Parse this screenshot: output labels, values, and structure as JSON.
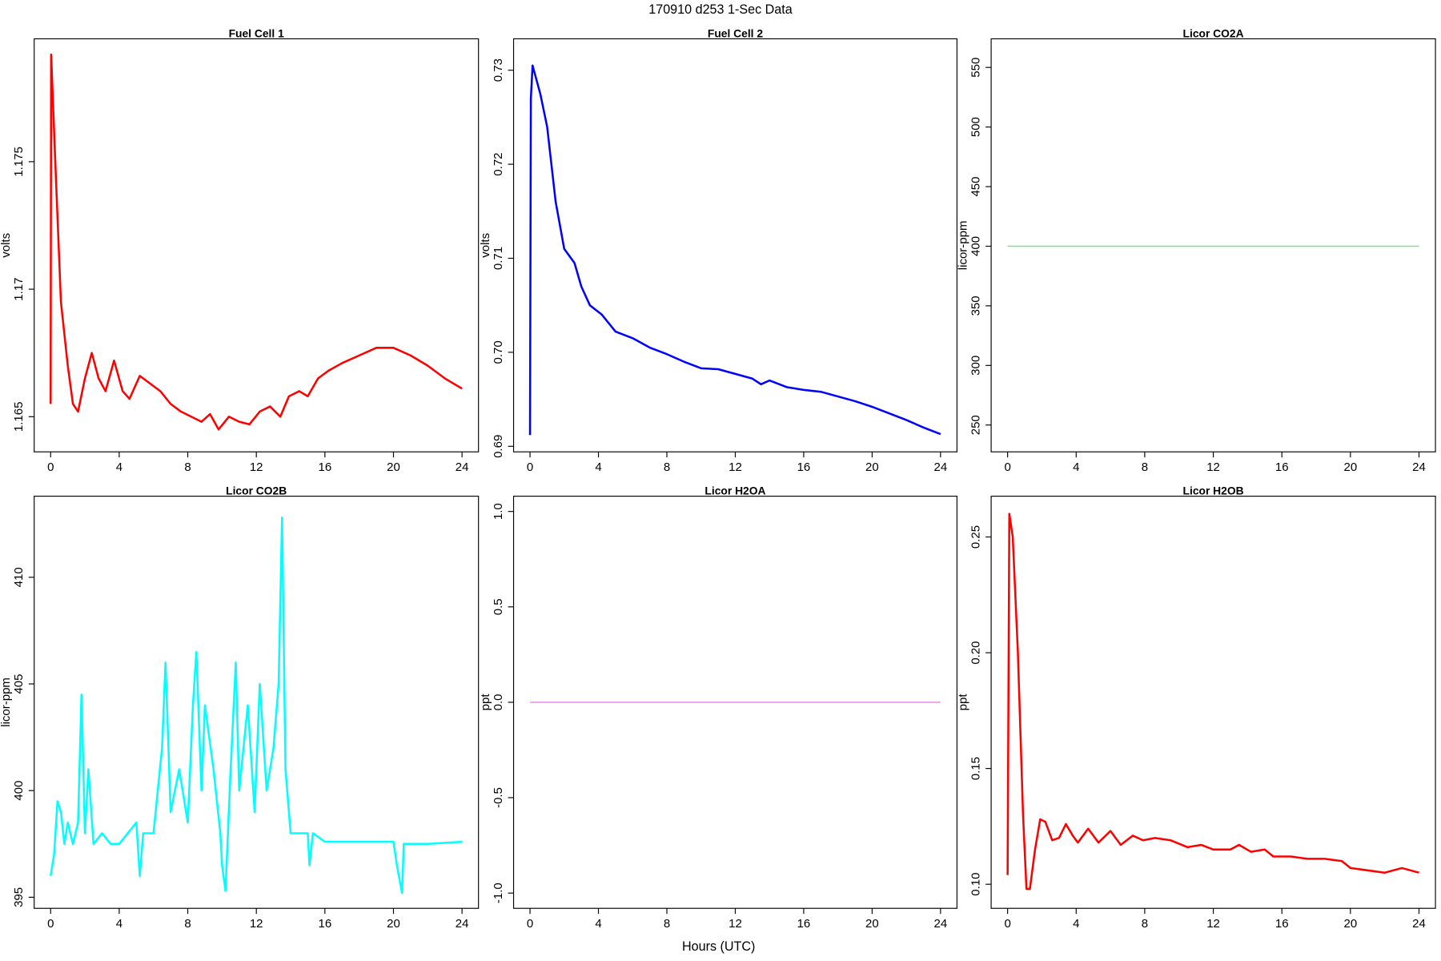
{
  "title": "170910   d253   1-Sec Data",
  "xlabel": "Hours (UTC)",
  "chart_data": [
    {
      "type": "line",
      "title": "Fuel Cell 1",
      "ylabel": "volts",
      "color": "#ff0000",
      "x": [
        0,
        0.03,
        0.3,
        0.6,
        1.0,
        1.3,
        1.6,
        2.0,
        2.4,
        2.8,
        3.2,
        3.7,
        4.2,
        4.6,
        5.2,
        5.8,
        6.4,
        7.0,
        7.6,
        8.2,
        8.8,
        9.3,
        9.8,
        10.4,
        11.0,
        11.6,
        12.2,
        12.8,
        13.4,
        13.9,
        14.5,
        15.0,
        15.6,
        16.2,
        17,
        18,
        19,
        20,
        21,
        22,
        23,
        24
      ],
      "values": [
        1.1655,
        1.1792,
        1.1745,
        1.1695,
        1.167,
        1.1655,
        1.1652,
        1.1665,
        1.1675,
        1.1665,
        1.166,
        1.1672,
        1.166,
        1.1657,
        1.1666,
        1.1663,
        1.166,
        1.1655,
        1.1652,
        1.165,
        1.1648,
        1.1651,
        1.1645,
        1.165,
        1.1648,
        1.1647,
        1.1652,
        1.1654,
        1.165,
        1.1658,
        1.166,
        1.1658,
        1.1665,
        1.1668,
        1.1671,
        1.1674,
        1.1677,
        1.1677,
        1.1674,
        1.167,
        1.1665,
        1.1661
      ],
      "xlim": [
        -0.96,
        24.96
      ],
      "ylim": [
        1.16362,
        1.17982
      ],
      "xticks": [
        0,
        4,
        8,
        12,
        16,
        20,
        24
      ],
      "yticks": [
        1.165,
        1.17,
        1.175
      ]
    },
    {
      "type": "line",
      "title": "Fuel Cell 2",
      "ylabel": "volts",
      "color": "#0000ff",
      "x": [
        0,
        0.05,
        0.15,
        0.3,
        0.6,
        1.0,
        1.5,
        2,
        2.6,
        3,
        3.5,
        4.2,
        5,
        6,
        7,
        8,
        9,
        10,
        11,
        12,
        13,
        13.5,
        14,
        15,
        16,
        17,
        18,
        19,
        20,
        21,
        22,
        23,
        24
      ],
      "values": [
        0.6912,
        0.727,
        0.7305,
        0.7295,
        0.7275,
        0.724,
        0.716,
        0.711,
        0.7095,
        0.707,
        0.705,
        0.704,
        0.7022,
        0.7015,
        0.7005,
        0.6998,
        0.699,
        0.6983,
        0.6982,
        0.6977,
        0.6972,
        0.6966,
        0.697,
        0.6963,
        0.696,
        0.6958,
        0.6953,
        0.6948,
        0.6942,
        0.6935,
        0.6928,
        0.692,
        0.6913
      ],
      "xlim": [
        -0.96,
        24.96
      ],
      "ylim": [
        0.68941,
        0.73334
      ],
      "xticks": [
        0,
        4,
        8,
        12,
        16,
        20,
        24
      ],
      "yticks": [
        {
          "value": 0.69,
          "label": "0.69"
        },
        {
          "value": 0.7,
          "label": "0.70"
        },
        0.71,
        0.72,
        0.73
      ]
    },
    {
      "type": "line",
      "title": "Licor CO2A",
      "ylabel": "licor-ppm",
      "color": "#66ee66",
      "x": [
        0,
        24
      ],
      "values": [
        400,
        400
      ],
      "xlim": [
        -0.96,
        24.96
      ],
      "ylim": [
        227.5,
        574
      ],
      "xticks": [
        0,
        4,
        8,
        12,
        16,
        20,
        24
      ],
      "yticks": [
        250,
        300,
        350,
        400,
        450,
        500,
        550
      ]
    },
    {
      "type": "line",
      "title": "Licor CO2B",
      "ylabel": "licor-ppm",
      "color": "#00ffff",
      "x": [
        0,
        0.2,
        0.4,
        0.6,
        0.8,
        1.0,
        1.3,
        1.6,
        1.8,
        2.0,
        2.2,
        2.5,
        3,
        3.5,
        4,
        4.5,
        5,
        5.2,
        5.4,
        6,
        6.5,
        6.7,
        7,
        7.5,
        8,
        8.3,
        8.5,
        8.8,
        9,
        9.5,
        9.9,
        10.0,
        10.2,
        10.5,
        10.8,
        11,
        11.5,
        11.9,
        12.2,
        12.6,
        13,
        13.3,
        13.5,
        13.7,
        14,
        14.5,
        15,
        15.1,
        15.3,
        16,
        18,
        20,
        20.2,
        20.5,
        20.6,
        22,
        24
      ],
      "values": [
        396,
        397,
        399.5,
        399,
        397.5,
        398.5,
        397.5,
        398.5,
        404.5,
        398,
        401,
        397.5,
        398,
        397.5,
        397.5,
        398,
        398.5,
        396,
        398,
        398,
        402,
        406,
        399,
        401,
        398.5,
        404,
        406.5,
        400,
        404,
        401,
        398,
        396.5,
        395.3,
        401,
        406,
        400,
        404,
        399,
        405,
        400,
        402,
        405,
        412.8,
        401,
        398,
        398,
        398,
        396.5,
        398,
        397.6,
        397.6,
        397.6,
        396.5,
        395.2,
        397.5,
        397.5,
        397.6
      ],
      "xlim": [
        -0.96,
        24.96
      ],
      "ylim": [
        394.48,
        413.8
      ],
      "xticks": [
        0,
        4,
        8,
        12,
        16,
        20,
        24
      ],
      "yticks": [
        395,
        400,
        405,
        410
      ]
    },
    {
      "type": "line",
      "title": "Licor H2OA",
      "ylabel": "ppt",
      "color": "#dd88dd",
      "x": [
        0,
        24
      ],
      "values": [
        0,
        0
      ],
      "xlim": [
        -0.96,
        24.96
      ],
      "ylim": [
        -1.08,
        1.08
      ],
      "xticks": [
        0,
        4,
        8,
        12,
        16,
        20,
        24
      ],
      "yticks": [
        {
          "value": -1,
          "label": "-1.0"
        },
        -0.5,
        {
          "value": 0,
          "label": "0.0"
        },
        0.5,
        {
          "value": 1,
          "label": "1.0"
        }
      ]
    },
    {
      "type": "line",
      "title": "Licor H2OB",
      "ylabel": "ppt",
      "color": "#ff0000",
      "x": [
        0,
        0.1,
        0.3,
        0.6,
        0.9,
        1.1,
        1.3,
        1.6,
        1.9,
        2.2,
        2.6,
        3.0,
        3.4,
        3.8,
        4.1,
        4.7,
        5.3,
        6.0,
        6.6,
        7.3,
        7.9,
        8.6,
        9.5,
        10.5,
        11.3,
        12,
        13,
        13.5,
        14.2,
        15,
        15.5,
        16.5,
        17.5,
        18.5,
        19.5,
        20,
        21,
        22,
        23,
        24
      ],
      "values": [
        0.104,
        0.26,
        0.25,
        0.2,
        0.13,
        0.098,
        0.098,
        0.115,
        0.128,
        0.127,
        0.119,
        0.12,
        0.126,
        0.121,
        0.118,
        0.124,
        0.118,
        0.123,
        0.117,
        0.121,
        0.119,
        0.12,
        0.119,
        0.116,
        0.117,
        0.115,
        0.115,
        0.117,
        0.114,
        0.115,
        0.112,
        0.112,
        0.111,
        0.111,
        0.11,
        0.107,
        0.106,
        0.105,
        0.107,
        0.105
      ],
      "xlim": [
        -0.96,
        24.96
      ],
      "ylim": [
        0.0896,
        0.2676
      ],
      "xticks": [
        0,
        4,
        8,
        12,
        16,
        20,
        24
      ],
      "yticks": [
        {
          "value": 0.1,
          "label": "0.10"
        },
        0.15,
        {
          "value": 0.2,
          "label": "0.20"
        },
        0.25
      ]
    }
  ]
}
